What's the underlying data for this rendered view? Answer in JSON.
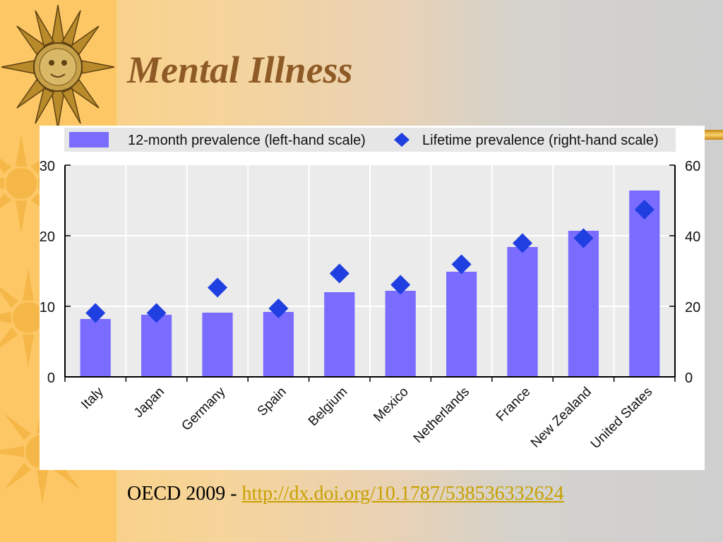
{
  "slide": {
    "title": "Mental Illness",
    "source_prefix": "OECD 2009 - ",
    "source_link": "http://dx.doi.org/10.1787/538536332624"
  },
  "decor": {
    "icons": [
      "sun-icon"
    ],
    "colors": {
      "strip": "#fdc766",
      "title": "#8e5a26",
      "link": "#c8a000",
      "sun": "#e9a72a"
    }
  },
  "chart_data": {
    "type": "bar",
    "title": "",
    "xlabel": "",
    "ylabel": "",
    "categories": [
      "Italy",
      "Japan",
      "Germany",
      "Spain",
      "Belgium",
      "Mexico",
      "Netherlands",
      "France",
      "New Zealand",
      "United States"
    ],
    "series": [
      {
        "name": "12-month prevalence (left-hand scale)",
        "kind": "bar",
        "axis": "left",
        "color": "#7a6cff",
        "values": [
          8.2,
          8.8,
          9.1,
          9.2,
          12.0,
          12.2,
          14.9,
          18.4,
          20.7,
          26.4
        ]
      },
      {
        "name": "Lifetime prevalence (right-hand scale)",
        "kind": "marker",
        "marker": "diamond",
        "axis": "right",
        "color": "#1f3fe0",
        "values": [
          18.1,
          18.1,
          25.3,
          19.4,
          29.3,
          26.1,
          31.9,
          37.9,
          39.3,
          47.4
        ]
      }
    ],
    "ylim": [
      0,
      30
    ],
    "y2lim": [
      0,
      60
    ],
    "yticks": [
      "0",
      "10",
      "20",
      "30"
    ],
    "y2ticks": [
      "0",
      "20",
      "40",
      "60"
    ],
    "grid": true,
    "legend": "top",
    "category_label_rotation": "-45deg"
  }
}
